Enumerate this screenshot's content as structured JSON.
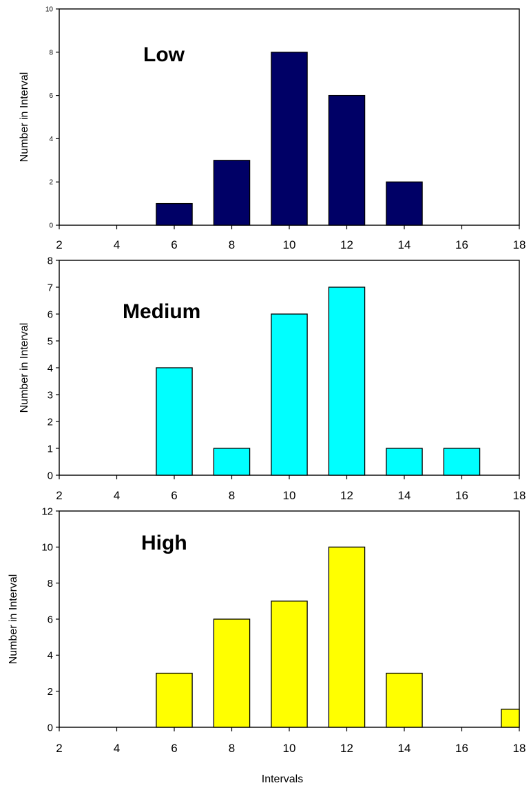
{
  "chart_data": [
    {
      "type": "bar",
      "title": "Low",
      "xlabel": "",
      "ylabel": "Number in Interval",
      "xlim": [
        2,
        18
      ],
      "ylim": [
        0,
        10
      ],
      "x_ticks": [
        2,
        4,
        6,
        8,
        10,
        12,
        14,
        16,
        18
      ],
      "y_ticks": [
        0,
        2,
        4,
        6,
        8,
        10
      ],
      "x": [
        6,
        8,
        10,
        12,
        14
      ],
      "values": [
        1,
        3,
        8,
        6,
        2
      ],
      "color": "#000066",
      "bar_width": 1.25,
      "grid": false,
      "small_y_ticks": true
    },
    {
      "type": "bar",
      "title": "Medium",
      "xlabel": "",
      "ylabel": "Number in Interval",
      "xlim": [
        2,
        18
      ],
      "ylim": [
        0,
        8
      ],
      "x_ticks": [
        2,
        4,
        6,
        8,
        10,
        12,
        14,
        16,
        18
      ],
      "y_ticks": [
        0,
        1,
        2,
        3,
        4,
        5,
        6,
        7,
        8
      ],
      "x": [
        6,
        8,
        10,
        12,
        14,
        16
      ],
      "values": [
        4,
        1,
        6,
        7,
        1,
        1
      ],
      "color": "#00FFFF",
      "bar_width": 1.25,
      "grid": false,
      "small_y_ticks": false
    },
    {
      "type": "bar",
      "title": "High",
      "xlabel": "Intervals",
      "ylabel": "Number in Interval",
      "xlim": [
        2,
        18
      ],
      "ylim": [
        0,
        12
      ],
      "x_ticks": [
        2,
        4,
        6,
        8,
        10,
        12,
        14,
        16,
        18
      ],
      "y_ticks": [
        0,
        2,
        4,
        6,
        8,
        10,
        12
      ],
      "x": [
        6,
        8,
        10,
        12,
        14,
        18
      ],
      "values": [
        3,
        6,
        7,
        10,
        3,
        1
      ],
      "color": "#FFFF00",
      "bar_width": 1.25,
      "grid": false,
      "small_y_ticks": false
    }
  ]
}
